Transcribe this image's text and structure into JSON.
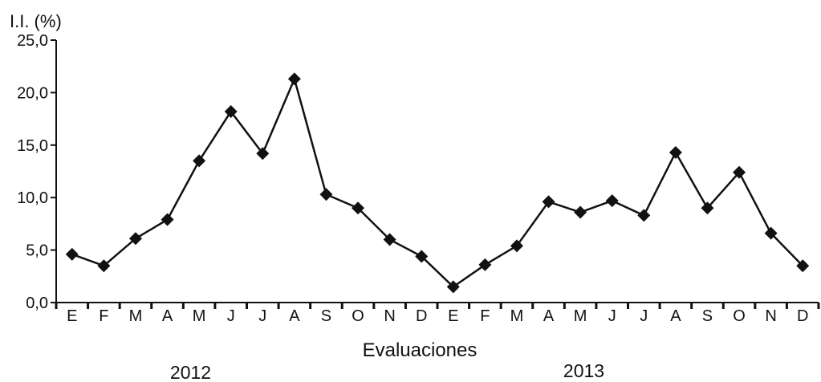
{
  "chart_data": {
    "type": "line",
    "ylabel": "I.I. (%)",
    "xlabel": "Evaluaciones",
    "ylim": [
      0,
      25
    ],
    "yticks": [
      "0,0",
      "5,0",
      "10,0",
      "15,0",
      "20,0",
      "25,0"
    ],
    "categories": [
      "E",
      "F",
      "M",
      "A",
      "M",
      "J",
      "J",
      "A",
      "S",
      "O",
      "N",
      "D",
      "E",
      "F",
      "M",
      "A",
      "M",
      "J",
      "J",
      "A",
      "S",
      "O",
      "N",
      "D"
    ],
    "groups": [
      {
        "label": "2012",
        "start": 0,
        "end": 11
      },
      {
        "label": "2013",
        "start": 12,
        "end": 23
      }
    ],
    "series": [
      {
        "values": [
          4.6,
          3.5,
          6.1,
          7.9,
          13.5,
          18.2,
          14.2,
          21.3,
          10.3,
          9.0,
          6.0,
          4.4,
          1.5,
          3.6,
          5.4,
          9.6,
          8.6,
          9.7,
          8.3,
          14.3,
          9.0,
          12.4,
          6.6,
          3.5
        ]
      }
    ],
    "grid": false,
    "marker": "diamond",
    "line_color": "#111111"
  }
}
